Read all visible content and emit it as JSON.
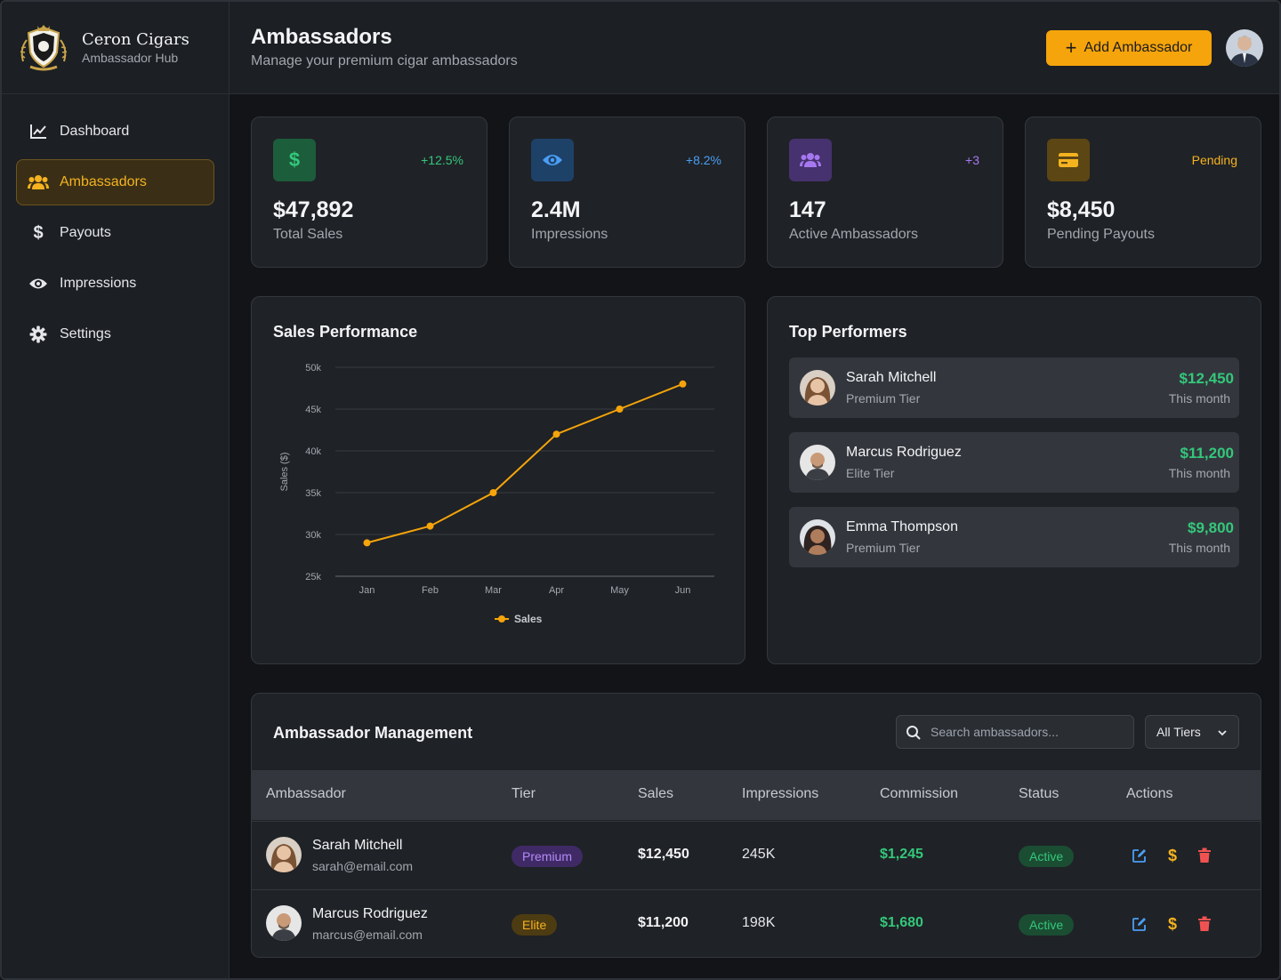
{
  "brand": {
    "name": "Ceron Cigars",
    "subtitle": "Ambassador Hub"
  },
  "sidebar": {
    "items": [
      {
        "label": "Dashboard",
        "icon": "chart-line-icon",
        "active": false
      },
      {
        "label": "Ambassadors",
        "icon": "users-icon",
        "active": true
      },
      {
        "label": "Payouts",
        "icon": "dollar-icon",
        "active": false
      },
      {
        "label": "Impressions",
        "icon": "eye-icon",
        "active": false
      },
      {
        "label": "Settings",
        "icon": "gear-icon",
        "active": false
      }
    ]
  },
  "header": {
    "title": "Ambassadors",
    "subtitle": "Manage your premium cigar ambassadors",
    "add_label": "Add Ambassador"
  },
  "stats": [
    {
      "value": "$47,892",
      "label": "Total Sales",
      "change": "+12.5%",
      "icon": "dollar-icon",
      "color": "#34c77b"
    },
    {
      "value": "2.4M",
      "label": "Impressions",
      "change": "+8.2%",
      "icon": "eye-icon",
      "color": "#4a9ef5"
    },
    {
      "value": "147",
      "label": "Active Ambassadors",
      "change": "+3",
      "icon": "users-icon",
      "color": "#a678f0"
    },
    {
      "value": "$8,450",
      "label": "Pending Payouts",
      "change": "Pending",
      "icon": "credit-card-icon",
      "color": "#f5b320"
    }
  ],
  "sales_chart": {
    "title": "Sales Performance",
    "chart_data": {
      "type": "line",
      "categories": [
        "Jan",
        "Feb",
        "Mar",
        "Apr",
        "May",
        "Jun"
      ],
      "series": [
        {
          "name": "Sales",
          "values": [
            29000,
            31000,
            35000,
            42000,
            45000,
            48000
          ],
          "color": "#f5a40b"
        }
      ],
      "ylabel": "Sales ($)",
      "ylim": [
        25000,
        50000
      ],
      "yticks": [
        "25k",
        "30k",
        "35k",
        "40k",
        "45k",
        "50k"
      ],
      "legend": "bottom",
      "grid": true
    }
  },
  "top_performers": {
    "title": "Top Performers",
    "items": [
      {
        "name": "Sarah Mitchell",
        "tier": "Premium Tier",
        "amount": "$12,450",
        "period": "This month"
      },
      {
        "name": "Marcus Rodriguez",
        "tier": "Elite Tier",
        "amount": "$11,200",
        "period": "This month"
      },
      {
        "name": "Emma Thompson",
        "tier": "Premium Tier",
        "amount": "$9,800",
        "period": "This month"
      }
    ]
  },
  "management": {
    "title": "Ambassador Management",
    "search_placeholder": "Search ambassadors...",
    "tier_filter": "All Tiers",
    "columns": [
      "Ambassador",
      "Tier",
      "Sales",
      "Impressions",
      "Commission",
      "Status",
      "Actions"
    ],
    "rows": [
      {
        "name": "Sarah Mitchell",
        "email": "sarah@email.com",
        "tier": "Premium",
        "sales": "$12,450",
        "impressions": "245K",
        "commission": "$1,245",
        "status": "Active"
      },
      {
        "name": "Marcus Rodriguez",
        "email": "marcus@email.com",
        "tier": "Elite",
        "sales": "$11,200",
        "impressions": "198K",
        "commission": "$1,680",
        "status": "Active"
      }
    ]
  }
}
